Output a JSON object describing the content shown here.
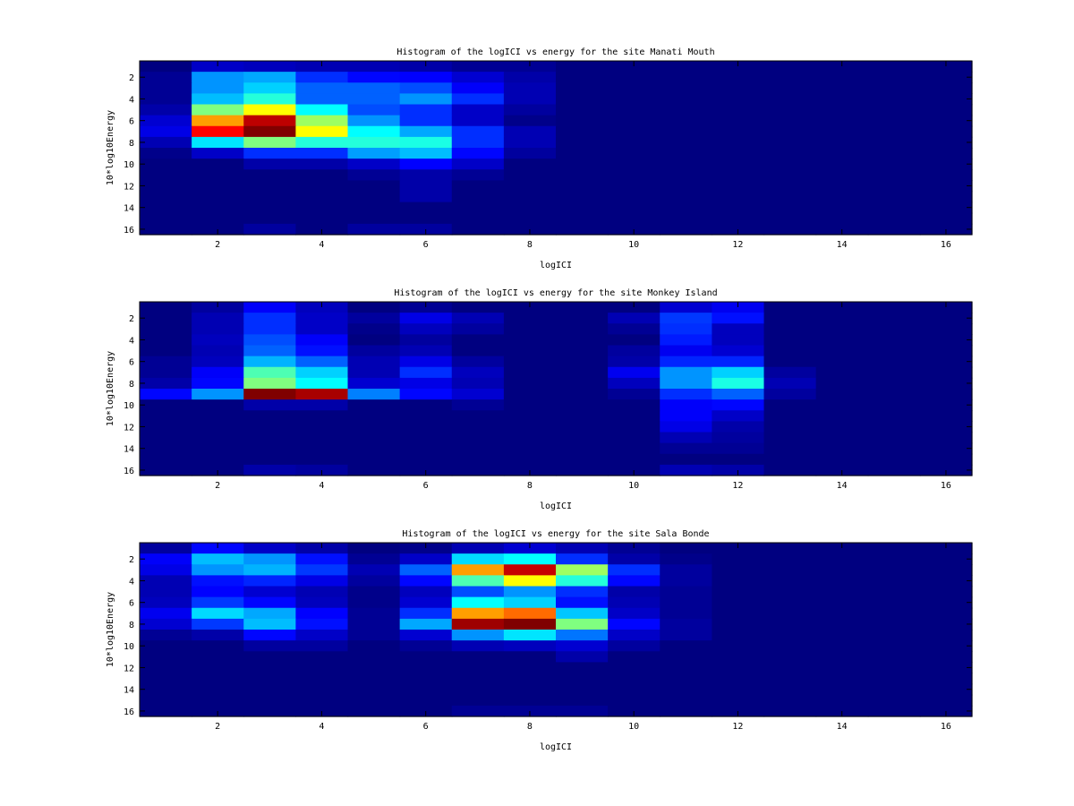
{
  "chart_data": [
    {
      "type": "heatmap",
      "title": "Histogram of the logICI vs energy for the site Manati Mouth",
      "xlabel": "logICI",
      "ylabel": "10*log10Energy",
      "xlim": [
        0.5,
        16.5
      ],
      "ylim": [
        16.5,
        0.5
      ],
      "y_reversed": true,
      "xticks": [
        "2",
        "4",
        "6",
        "8",
        "10",
        "12",
        "14",
        "16"
      ],
      "yticks": [
        "2",
        "4",
        "6",
        "8",
        "10",
        "12",
        "14",
        "16"
      ],
      "colormap": "jet",
      "value_scale": "normalized 0-1",
      "matrix": [
        [
          0,
          0.07,
          0.06,
          0.05,
          0.05,
          0.04,
          0.02,
          0.02,
          0,
          0,
          0,
          0,
          0,
          0,
          0,
          0
        ],
        [
          0.02,
          0.27,
          0.29,
          0.17,
          0.13,
          0.125,
          0.08,
          0.04,
          0,
          0,
          0,
          0,
          0,
          0,
          0,
          0
        ],
        [
          0.02,
          0.27,
          0.33,
          0.22,
          0.22,
          0.2,
          0.12,
          0.05,
          0,
          0,
          0,
          0,
          0,
          0,
          0,
          0
        ],
        [
          0.02,
          0.31,
          0.41,
          0.22,
          0.22,
          0.27,
          0.17,
          0.05,
          0,
          0,
          0,
          0,
          0,
          0,
          0,
          0
        ],
        [
          0.04,
          0.5,
          0.625,
          0.375,
          0.2,
          0.17,
          0.07,
          0.03,
          0,
          0,
          0,
          0,
          0,
          0,
          0,
          0
        ],
        [
          0.08,
          0.72,
          0.94,
          0.53,
          0.27,
          0.17,
          0.07,
          0.01,
          0,
          0,
          0,
          0,
          0,
          0,
          0,
          0
        ],
        [
          0.1,
          0.875,
          1,
          0.625,
          0.375,
          0.29,
          0.17,
          0.05,
          0,
          0,
          0,
          0,
          0,
          0,
          0,
          0
        ],
        [
          0.05,
          0.35,
          0.5,
          0.41,
          0.41,
          0.4,
          0.17,
          0.05,
          0,
          0,
          0,
          0,
          0,
          0,
          0,
          0
        ],
        [
          0.01,
          0.07,
          0.17,
          0.17,
          0.28,
          0.31,
          0.13,
          0.03,
          0,
          0,
          0,
          0,
          0,
          0,
          0,
          0
        ],
        [
          0,
          0,
          0.04,
          0.04,
          0.07,
          0.125,
          0.07,
          0,
          0,
          0,
          0,
          0,
          0,
          0,
          0,
          0
        ],
        [
          0,
          0,
          0,
          0,
          0.02,
          0.04,
          0.02,
          0,
          0,
          0,
          0,
          0,
          0,
          0,
          0,
          0
        ],
        [
          0,
          0,
          0,
          0,
          0,
          0.04,
          0,
          0,
          0,
          0,
          0,
          0,
          0,
          0,
          0,
          0
        ],
        [
          0,
          0,
          0,
          0,
          0,
          0.04,
          0,
          0,
          0,
          0,
          0,
          0,
          0,
          0,
          0,
          0
        ],
        [
          0,
          0,
          0,
          0,
          0,
          0,
          0,
          0,
          0,
          0,
          0,
          0,
          0,
          0,
          0,
          0
        ],
        [
          0,
          0,
          0,
          0,
          0,
          0,
          0,
          0,
          0,
          0,
          0,
          0,
          0,
          0,
          0,
          0
        ],
        [
          0,
          0,
          0.03,
          0,
          0.03,
          0.03,
          0,
          0,
          0,
          0,
          0,
          0,
          0,
          0,
          0,
          0
        ]
      ]
    },
    {
      "type": "heatmap",
      "title": "Histogram of the logICI vs energy for the site Monkey Island",
      "xlabel": "logICI",
      "ylabel": "10*log10Energy",
      "xlim": [
        0.5,
        16.5
      ],
      "ylim": [
        16.5,
        0.5
      ],
      "y_reversed": true,
      "xticks": [
        "2",
        "4",
        "6",
        "8",
        "10",
        "12",
        "14",
        "16"
      ],
      "yticks": [
        "2",
        "4",
        "6",
        "8",
        "10",
        "12",
        "14",
        "16"
      ],
      "colormap": "jet",
      "value_scale": "normalized 0-1",
      "matrix": [
        [
          0,
          0.03,
          0.12,
          0.06,
          0,
          0.02,
          0,
          0,
          0,
          0,
          0.08,
          0.11,
          0,
          0,
          0,
          0
        ],
        [
          0,
          0.05,
          0.17,
          0.07,
          0.03,
          0.1,
          0.05,
          0,
          0,
          0.05,
          0.18,
          0.14,
          0,
          0,
          0,
          0
        ],
        [
          0,
          0.05,
          0.17,
          0.07,
          0.01,
          0.06,
          0.03,
          0,
          0,
          0.02,
          0.17,
          0.06,
          0,
          0,
          0,
          0
        ],
        [
          0,
          0.06,
          0.2,
          0.12,
          0,
          0.03,
          0,
          0,
          0,
          0,
          0.15,
          0.06,
          0,
          0,
          0,
          0
        ],
        [
          0,
          0.05,
          0.22,
          0.14,
          0.03,
          0.05,
          0,
          0,
          0,
          0.03,
          0.11,
          0.08,
          0,
          0,
          0,
          0
        ],
        [
          0.02,
          0.06,
          0.3,
          0.22,
          0.05,
          0.1,
          0.03,
          0,
          0,
          0.04,
          0.16,
          0.16,
          0,
          0,
          0,
          0
        ],
        [
          0.02,
          0.12,
          0.45,
          0.33,
          0.05,
          0.17,
          0.06,
          0,
          0,
          0.11,
          0.27,
          0.33,
          0.03,
          0,
          0,
          0
        ],
        [
          0.04,
          0.13,
          0.5,
          0.375,
          0.08,
          0.1,
          0.05,
          0,
          0,
          0.06,
          0.27,
          0.4,
          0.05,
          0,
          0,
          0
        ],
        [
          0.13,
          0.27,
          1,
          0.96,
          0.25,
          0.13,
          0.08,
          0,
          0,
          0.02,
          0.17,
          0.22,
          0.03,
          0,
          0,
          0
        ],
        [
          0,
          0,
          0.04,
          0.04,
          0,
          0,
          0.02,
          0,
          0,
          0,
          0.12,
          0.13,
          0,
          0,
          0,
          0
        ],
        [
          0,
          0,
          0,
          0,
          0,
          0,
          0,
          0,
          0,
          0,
          0.12,
          0.07,
          0,
          0,
          0,
          0
        ],
        [
          0,
          0,
          0,
          0,
          0,
          0,
          0,
          0,
          0,
          0,
          0.1,
          0.04,
          0,
          0,
          0,
          0
        ],
        [
          0,
          0,
          0,
          0,
          0,
          0,
          0,
          0,
          0,
          0,
          0.05,
          0.03,
          0,
          0,
          0,
          0
        ],
        [
          0,
          0,
          0,
          0,
          0,
          0,
          0,
          0,
          0,
          0,
          0.02,
          0.02,
          0,
          0,
          0,
          0
        ],
        [
          0,
          0,
          0,
          0,
          0,
          0,
          0,
          0,
          0,
          0,
          0,
          0,
          0,
          0,
          0,
          0
        ],
        [
          0,
          0,
          0.04,
          0.03,
          0,
          0,
          0,
          0,
          0,
          0,
          0.05,
          0.04,
          0,
          0,
          0,
          0
        ]
      ]
    },
    {
      "type": "heatmap",
      "title": "Histogram of the logICI vs energy for the site Sala Bonde",
      "xlabel": "logICI",
      "ylabel": "10*log10Energy",
      "xlim": [
        0.5,
        16.5
      ],
      "ylim": [
        16.5,
        0.5
      ],
      "y_reversed": true,
      "xticks": [
        "2",
        "4",
        "6",
        "8",
        "10",
        "12",
        "14",
        "16"
      ],
      "yticks": [
        "2",
        "4",
        "6",
        "8",
        "10",
        "12",
        "14",
        "16"
      ],
      "colormap": "jet",
      "value_scale": "normalized 0-1",
      "matrix": [
        [
          0.03,
          0.13,
          0.07,
          0.04,
          0,
          0.01,
          0.05,
          0.08,
          0.05,
          0.02,
          0,
          0,
          0,
          0,
          0,
          0
        ],
        [
          0.12,
          0.31,
          0.27,
          0.14,
          0.02,
          0.07,
          0.34,
          0.375,
          0.17,
          0.04,
          0.01,
          0,
          0,
          0,
          0,
          0
        ],
        [
          0.1,
          0.27,
          0.3,
          0.18,
          0.05,
          0.22,
          0.72,
          0.93,
          0.53,
          0.17,
          0.03,
          0,
          0,
          0,
          0,
          0
        ],
        [
          0.05,
          0.14,
          0.16,
          0.1,
          0.03,
          0.13,
          0.45,
          0.625,
          0.41,
          0.13,
          0.03,
          0,
          0,
          0,
          0,
          0
        ],
        [
          0.05,
          0.125,
          0.08,
          0.05,
          0.01,
          0.06,
          0.2,
          0.27,
          0.17,
          0.04,
          0.02,
          0,
          0,
          0,
          0,
          0
        ],
        [
          0.06,
          0.18,
          0.13,
          0.06,
          0.01,
          0.08,
          0.375,
          0.33,
          0.14,
          0.05,
          0.02,
          0,
          0,
          0,
          0,
          0
        ],
        [
          0.11,
          0.34,
          0.29,
          0.125,
          0.02,
          0.17,
          0.72,
          0.77,
          0.32,
          0.07,
          0.02,
          0,
          0,
          0,
          0,
          0
        ],
        [
          0.08,
          0.18,
          0.31,
          0.14,
          0.02,
          0.29,
          0.97,
          1,
          0.5,
          0.13,
          0.03,
          0,
          0,
          0,
          0,
          0
        ],
        [
          0.02,
          0.04,
          0.13,
          0.07,
          0.02,
          0.08,
          0.27,
          0.35,
          0.24,
          0.07,
          0.03,
          0,
          0,
          0,
          0,
          0
        ],
        [
          0,
          0,
          0.03,
          0.03,
          0,
          0.02,
          0.05,
          0.06,
          0.08,
          0.03,
          0,
          0,
          0,
          0,
          0,
          0
        ],
        [
          0,
          0,
          0,
          0,
          0,
          0,
          0,
          0,
          0.04,
          0,
          0,
          0,
          0,
          0,
          0,
          0
        ],
        [
          0,
          0,
          0,
          0,
          0,
          0,
          0,
          0,
          0,
          0,
          0,
          0,
          0,
          0,
          0,
          0
        ],
        [
          0,
          0,
          0,
          0,
          0,
          0,
          0,
          0,
          0,
          0,
          0,
          0,
          0,
          0,
          0,
          0
        ],
        [
          0,
          0,
          0,
          0,
          0,
          0,
          0,
          0,
          0,
          0,
          0,
          0,
          0,
          0,
          0,
          0
        ],
        [
          0,
          0,
          0,
          0,
          0,
          0,
          0,
          0,
          0,
          0,
          0,
          0,
          0,
          0,
          0,
          0
        ],
        [
          0,
          0,
          0,
          0,
          0,
          0,
          0.02,
          0.02,
          0.02,
          0,
          0,
          0,
          0,
          0,
          0,
          0
        ]
      ]
    }
  ]
}
